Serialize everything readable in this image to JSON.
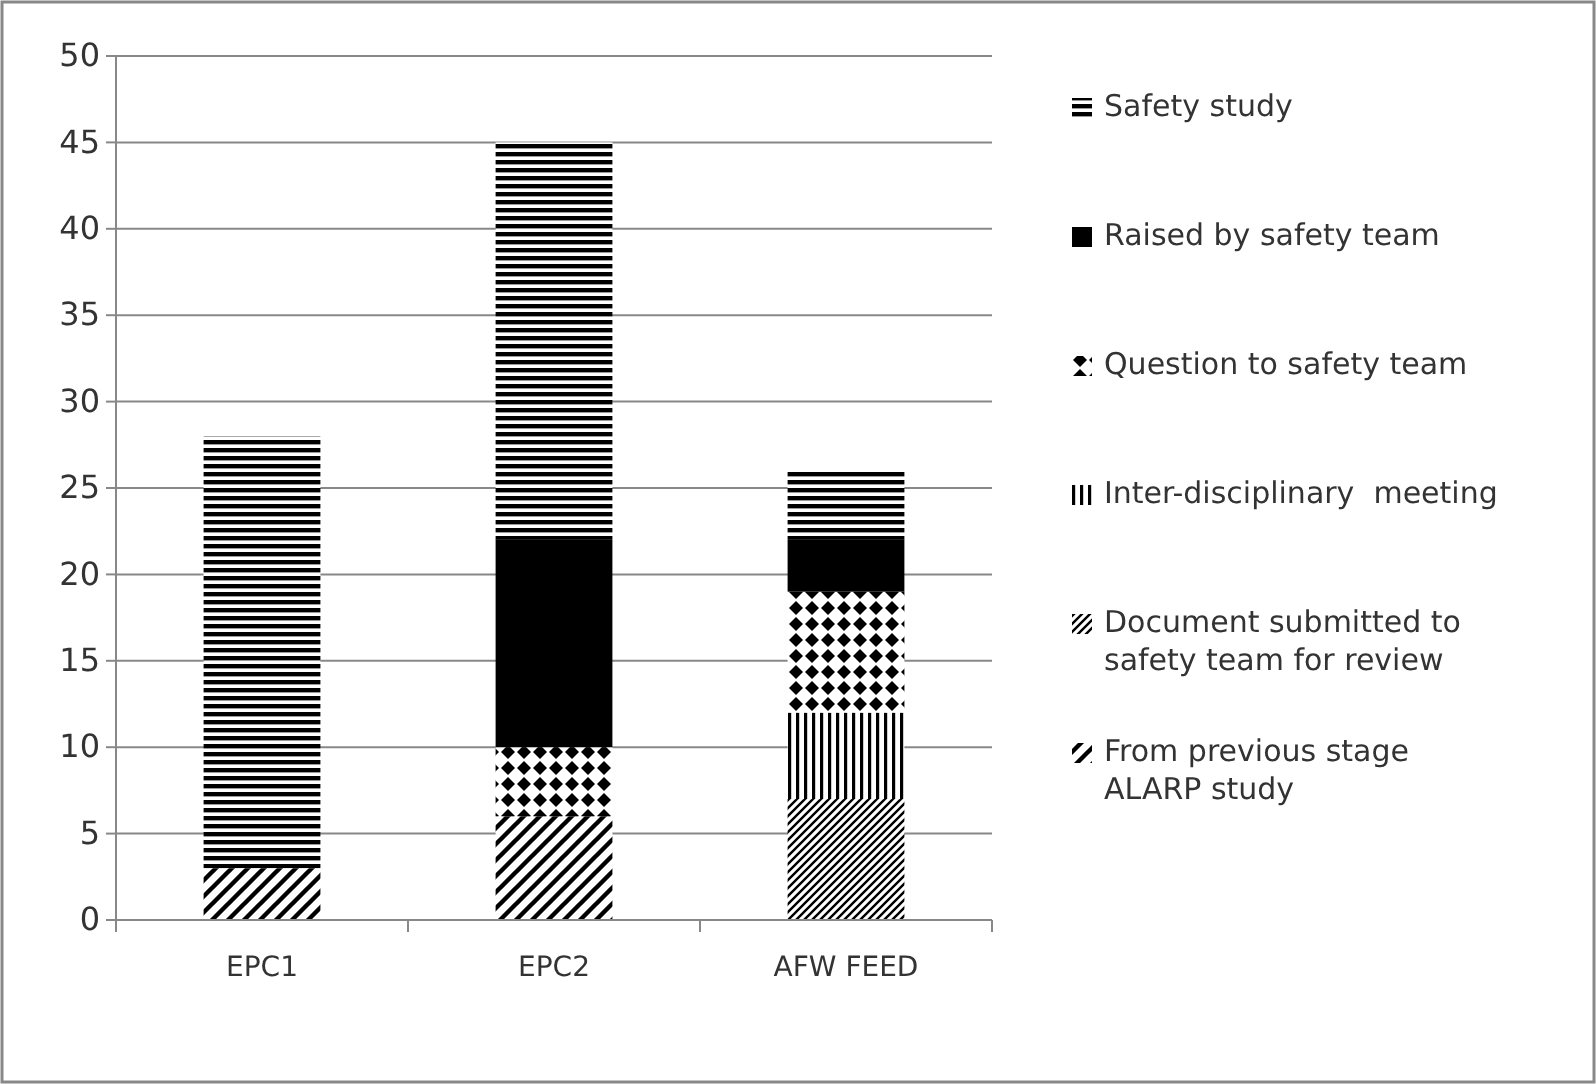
{
  "chart_data": {
    "type": "bar",
    "stacked": true,
    "categories": [
      "EPC1",
      "EPC2",
      "AFW FEED"
    ],
    "series": [
      {
        "name": "From previous stage ALARP study",
        "color": "#000000",
        "values": [
          3,
          6,
          0
        ]
      },
      {
        "name": "Document submitted to safety team for review",
        "color": "#000000",
        "values": [
          0,
          0,
          7
        ]
      },
      {
        "name": "Inter-disciplinary  meeting",
        "color": "#000000",
        "values": [
          0,
          0,
          5
        ]
      },
      {
        "name": "Question to safety team",
        "color": "#000000",
        "values": [
          0,
          4,
          7
        ]
      },
      {
        "name": "Raised by safety team",
        "color": "#000000",
        "values": [
          0,
          12,
          3
        ]
      },
      {
        "name": "Safety study",
        "color": "#000000",
        "values": [
          25,
          23,
          4
        ]
      }
    ],
    "ylim": [
      0,
      50
    ],
    "yticks": [
      0,
      5,
      10,
      15,
      20,
      25,
      30,
      35,
      40,
      45,
      50
    ],
    "grid": "y",
    "legend": "right"
  }
}
